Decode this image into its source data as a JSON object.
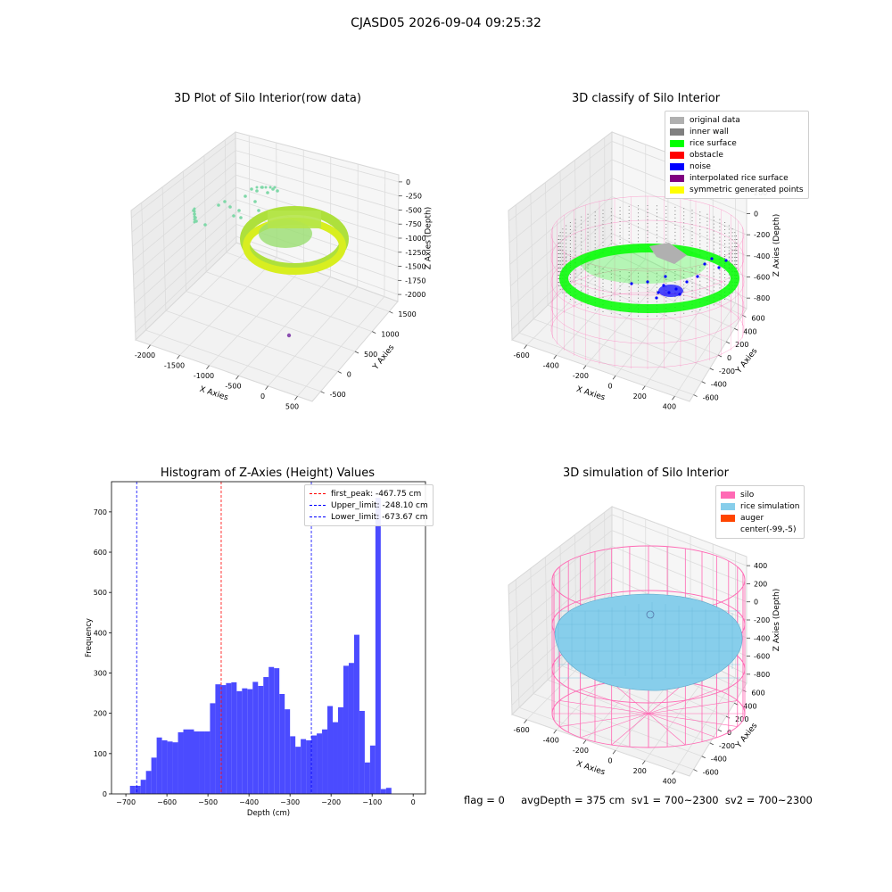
{
  "suptitle": "CJASD05 2026-09-04 09:25:32",
  "status_line": "flag = 0     avgDepth = 375 cm  sv1 = 700~2300  sv2 = 700~2300",
  "colors": {
    "silo_pink": "#ff69b4",
    "rice_blue": "#87ceeb",
    "auger_orange": "#ff4500",
    "hist_blue": "#4b4bff",
    "peak_red": "#ff0000",
    "limit_blue": "#0000ff",
    "original_gray": "#b0b0b0",
    "inner_wall_gray": "#808080",
    "rice_green": "#00ff00",
    "noise_blue": "#0000ff",
    "interp_purple": "#800080",
    "symmetric_yellow": "#ffff00",
    "raw_green": "#7fd8a8",
    "raw_yellow": "#d8ee20"
  },
  "chart_data": [
    {
      "type": "scatter",
      "subtype": "3d",
      "title": "3D Plot of Silo Interior(row data)",
      "xlabel": "X Axies",
      "ylabel": "Y Axies",
      "zlabel": "Z Axies (Depth)",
      "x_ticks": [
        "-2000",
        "-1500",
        "-1000",
        "-500",
        "0",
        "500"
      ],
      "y_ticks": [
        "-500",
        "0",
        "500",
        "1000",
        "1500"
      ],
      "z_ticks": [
        "0",
        "-250",
        "-500",
        "-750",
        "-1000",
        "-1250",
        "-1500",
        "-1750",
        "-2000"
      ],
      "grid": true
    },
    {
      "type": "scatter",
      "subtype": "3d",
      "title": "3D classify of Silo Interior",
      "xlabel": "X Axies",
      "ylabel": "Y Axies",
      "zlabel": "Z Axies (Depth)",
      "x_ticks": [
        "-600",
        "-400",
        "-200",
        "0",
        "200",
        "400"
      ],
      "y_ticks": [
        "-600",
        "-400",
        "-200",
        "0",
        "200",
        "400",
        "600"
      ],
      "z_ticks": [
        "200",
        "0",
        "-200",
        "-400",
        "-600",
        "-800"
      ],
      "legend_position": "top-right",
      "legend": [
        {
          "label": "original data",
          "color": "#b0b0b0"
        },
        {
          "label": "inner wall",
          "color": "#808080"
        },
        {
          "label": "rice surface",
          "color": "#00ff00"
        },
        {
          "label": "obstacle",
          "color": "#ff0000"
        },
        {
          "label": "noise",
          "color": "#0000ff"
        },
        {
          "label": "interpolated rice surface",
          "color": "#800080"
        },
        {
          "label": "symmetric generated points",
          "color": "#ffff00"
        }
      ],
      "grid": true
    },
    {
      "type": "bar",
      "subtype": "histogram",
      "title": "Histogram of Z-Axies (Height) Values",
      "xlabel": "Depth (cm)",
      "ylabel": "Frequency",
      "xlim": [
        -735,
        30
      ],
      "ylim": [
        0,
        775
      ],
      "x_ticks": [
        -700,
        -600,
        -500,
        -400,
        -300,
        -200,
        -100,
        0
      ],
      "y_ticks": [
        0,
        100,
        200,
        300,
        400,
        500,
        600,
        700
      ],
      "bin_width": 13,
      "bin_start": -690,
      "values": [
        20,
        20,
        35,
        57,
        90,
        140,
        133,
        130,
        128,
        153,
        160,
        160,
        155,
        155,
        155,
        225,
        272,
        270,
        275,
        277,
        255,
        262,
        260,
        278,
        268,
        290,
        315,
        312,
        248,
        210,
        143,
        117,
        136,
        133,
        145,
        150,
        160,
        218,
        178,
        215,
        318,
        325,
        395,
        206,
        78,
        120,
        735,
        12,
        15
      ],
      "vlines": [
        {
          "label": "first_peak: -467.75 cm",
          "x": -467.75,
          "color": "#ff0000"
        },
        {
          "label": "Upper_limit: -248.10 cm",
          "x": -248.1,
          "color": "#0000ff"
        },
        {
          "label": "Lower_limit: -673.67 cm",
          "x": -673.67,
          "color": "#0000ff"
        }
      ],
      "legend_position": "top-right",
      "grid": false
    },
    {
      "type": "area",
      "subtype": "3d-surface",
      "title": "3D simulation of Silo Interior",
      "xlabel": "X Axies",
      "ylabel": "Y Axies",
      "zlabel": "Z Axies (Depth)",
      "x_ticks": [
        "-600",
        "-400",
        "-200",
        "0",
        "200",
        "400"
      ],
      "y_ticks": [
        "-600",
        "-400",
        "-200",
        "0",
        "200",
        "400",
        "600"
      ],
      "z_ticks": [
        "400",
        "200",
        "0",
        "-200",
        "-400",
        "-600",
        "-800"
      ],
      "legend_position": "top-right",
      "legend": [
        {
          "label": "silo",
          "color": "#ff69b4"
        },
        {
          "label": "rice simulation",
          "color": "#87ceeb"
        },
        {
          "label": "auger",
          "color": "#ff4500"
        },
        {
          "label": "center(-99,-5)",
          "color": ""
        }
      ],
      "grid": true
    }
  ]
}
